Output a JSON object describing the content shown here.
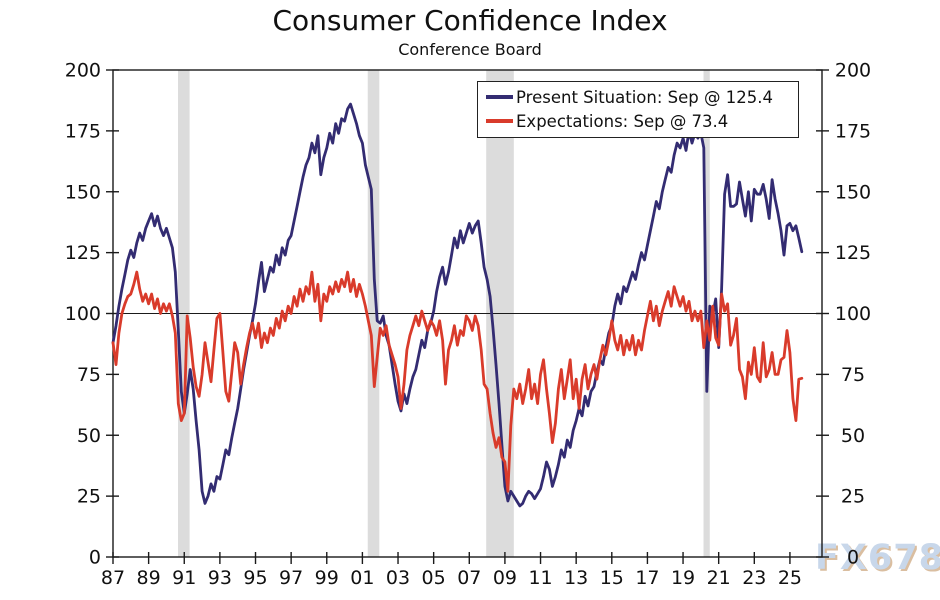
{
  "title": "Consumer Confidence Index",
  "subtitle": "Conference Board",
  "watermark": "FX678",
  "colors": {
    "present_situation": "#332C72",
    "expectations": "#D93B2B",
    "recession_band": "#DCDCDC",
    "axis": "#1a1a1a",
    "reference_line": "#1a1a1a",
    "background": "#ffffff"
  },
  "chart_data": {
    "type": "line",
    "title": "Consumer Confidence Index",
    "subtitle": "Conference Board",
    "x_start": 1987.0,
    "x_step": 0.1666667,
    "x_axis": {
      "min": 1987.0,
      "max": 2026.8,
      "tick_years": [
        1987,
        1989,
        1991,
        1993,
        1995,
        1997,
        1999,
        2001,
        2003,
        2005,
        2007,
        2009,
        2011,
        2013,
        2015,
        2017,
        2019,
        2021,
        2023,
        2025
      ],
      "tick_labels": [
        "87",
        "89",
        "91",
        "93",
        "95",
        "97",
        "99",
        "01",
        "03",
        "05",
        "07",
        "09",
        "11",
        "13",
        "15",
        "17",
        "19",
        "21",
        "23",
        "25"
      ]
    },
    "y_axis": {
      "min": 0,
      "max": 200,
      "ticks": [
        0,
        25,
        50,
        75,
        100,
        125,
        150,
        175,
        200
      ],
      "sides": "both"
    },
    "grid": false,
    "reference_line": 100,
    "recession_bands": [
      [
        1990.65,
        1991.3
      ],
      [
        2001.3,
        2001.95
      ],
      [
        2007.95,
        2009.5
      ],
      [
        2020.15,
        2020.5
      ]
    ],
    "legend_position": "top-right-inside",
    "legend": [
      {
        "label": "Present Situation: Sep @ 125.4",
        "color": "#332C72"
      },
      {
        "label": "Expectations: Sep @ 73.4",
        "color": "#D93B2B"
      }
    ],
    "series": [
      {
        "name": "Present Situation",
        "color": "#332C72",
        "latest": {
          "month": "Sep",
          "value": 125.4
        },
        "values": [
          88,
          95,
          103,
          110,
          116,
          122,
          126,
          123,
          129,
          133,
          130,
          135,
          138,
          141,
          136,
          140,
          135,
          132,
          135,
          131,
          127,
          117,
          93,
          68,
          59,
          67,
          77,
          69,
          56,
          44,
          27,
          22,
          25,
          30,
          27,
          33,
          32,
          38,
          44,
          42,
          49,
          55,
          61,
          69,
          77,
          84,
          91,
          97,
          104,
          113,
          121,
          109,
          114,
          119,
          117,
          124,
          120,
          127,
          124,
          130,
          132,
          138,
          144,
          150,
          156,
          161,
          164,
          170,
          166,
          173,
          157,
          164,
          168,
          174,
          170,
          178,
          174,
          180,
          179,
          184,
          186,
          182,
          178,
          173,
          170,
          161,
          156,
          151,
          114,
          97,
          96,
          99,
          91,
          87,
          79,
          71,
          64,
          60,
          67,
          63,
          69,
          74,
          77,
          83,
          89,
          86,
          93,
          96,
          101,
          109,
          115,
          119,
          112,
          117,
          124,
          131,
          127,
          134,
          129,
          133,
          137,
          133,
          136,
          138,
          129,
          119,
          114,
          107,
          94,
          79,
          63,
          46,
          29,
          23,
          27,
          25,
          23,
          21,
          22,
          25,
          27,
          26,
          24,
          26,
          28,
          33,
          39,
          36,
          29,
          33,
          38,
          44,
          41,
          48,
          45,
          52,
          56,
          61,
          58,
          66,
          62,
          68,
          70,
          76,
          81,
          79,
          86,
          92,
          95,
          103,
          108,
          104,
          111,
          109,
          113,
          117,
          114,
          120,
          125,
          122,
          128,
          134,
          140,
          146,
          143,
          150,
          155,
          160,
          158,
          165,
          170,
          168,
          172,
          167,
          175,
          170,
          174,
          172,
          174,
          168,
          68,
          103,
          99,
          106,
          86,
          110,
          149,
          157,
          144,
          144,
          145,
          154,
          147,
          140,
          150,
          138,
          151,
          149,
          149,
          153,
          147,
          139,
          155,
          147,
          141,
          134,
          124,
          136,
          137,
          134,
          136,
          131,
          125.4
        ]
      },
      {
        "name": "Expectations",
        "color": "#D93B2B",
        "latest": {
          "month": "Sep",
          "value": 73.4
        },
        "values": [
          88,
          79,
          92,
          100,
          104,
          107,
          108,
          112,
          117,
          110,
          105,
          108,
          104,
          108,
          102,
          106,
          100,
          104,
          101,
          104,
          99,
          92,
          63,
          56,
          59,
          99,
          90,
          78,
          70,
          66,
          75,
          88,
          80,
          72,
          85,
          98,
          100,
          84,
          68,
          64,
          76,
          88,
          84,
          71,
          79,
          86,
          92,
          96,
          90,
          96,
          86,
          92,
          88,
          94,
          91,
          98,
          94,
          101,
          97,
          103,
          100,
          107,
          103,
          110,
          105,
          111,
          108,
          117,
          105,
          112,
          97,
          108,
          105,
          111,
          108,
          113,
          109,
          114,
          111,
          117,
          109,
          114,
          107,
          112,
          108,
          103,
          97,
          91,
          70,
          82,
          94,
          91,
          95,
          87,
          83,
          79,
          74,
          61,
          71,
          85,
          91,
          95,
          99,
          95,
          101,
          97,
          93,
          97,
          95,
          91,
          97,
          89,
          71,
          85,
          89,
          95,
          87,
          93,
          91,
          99,
          97,
          93,
          99,
          95,
          85,
          71,
          69,
          59,
          51,
          45,
          49,
          41,
          39,
          27,
          54,
          69,
          65,
          71,
          63,
          69,
          77,
          65,
          71,
          63,
          75,
          81,
          69,
          59,
          47,
          55,
          69,
          77,
          65,
          73,
          81,
          65,
          73,
          61,
          73,
          79,
          69,
          75,
          79,
          73,
          81,
          87,
          83,
          89,
          97,
          89,
          85,
          91,
          83,
          89,
          85,
          91,
          83,
          89,
          85,
          93,
          99,
          105,
          97,
          103,
          95,
          101,
          105,
          109,
          103,
          111,
          107,
          103,
          107,
          101,
          105,
          97,
          101,
          97,
          101,
          86,
          97,
          89,
          103,
          90,
          87,
          108,
          101,
          104,
          87,
          91,
          98,
          77,
          74,
          65,
          80,
          75,
          86,
          74,
          72,
          88,
          74,
          77,
          84,
          75,
          75,
          81,
          82,
          93,
          84,
          65,
          56,
          73,
          73.4
        ]
      }
    ]
  }
}
